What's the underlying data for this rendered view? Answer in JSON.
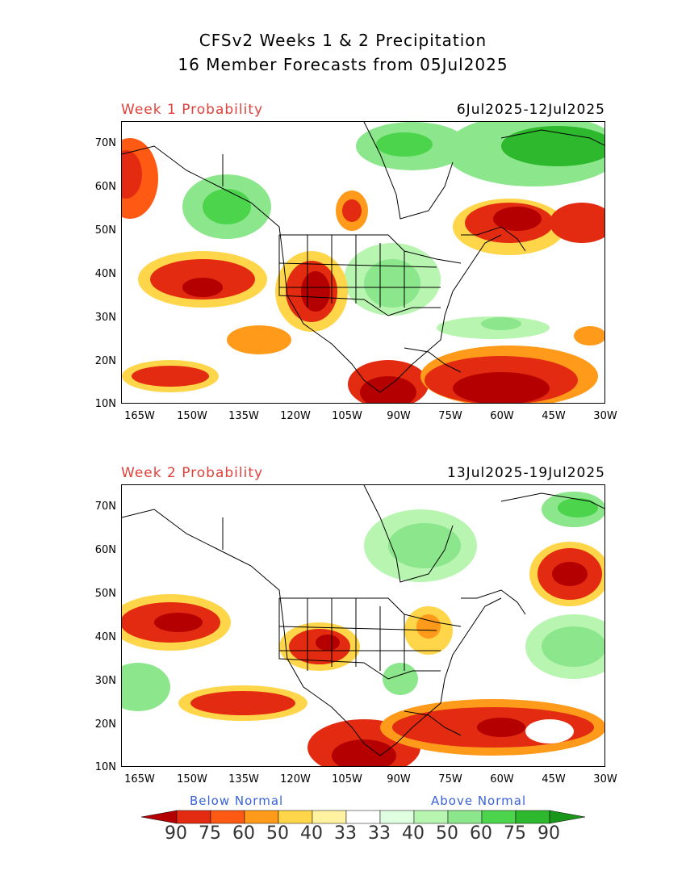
{
  "header": {
    "title_line1": "CFSv2 Weeks 1 & 2 Precipitation",
    "title_line2": "16 Member Forecasts from 05Jul2025"
  },
  "panels": [
    {
      "label": "Week 1 Probability",
      "dates": "6Jul2025-12Jul2025"
    },
    {
      "label": "Week 2 Probability",
      "dates": "13Jul2025-19Jul2025"
    }
  ],
  "axes": {
    "lat_labels": [
      "70N",
      "60N",
      "50N",
      "40N",
      "30N",
      "20N",
      "10N"
    ],
    "lon_labels": [
      "165W",
      "150W",
      "135W",
      "120W",
      "105W",
      "90W",
      "75W",
      "60W",
      "45W",
      "30W"
    ]
  },
  "legend": {
    "below_label": "Below Normal",
    "above_label": "Above Normal",
    "values": [
      "90",
      "75",
      "60",
      "50",
      "40",
      "33",
      "33",
      "40",
      "50",
      "60",
      "75",
      "90"
    ],
    "colors": [
      "#b40000",
      "#e22b10",
      "#ff5a14",
      "#ff9a1a",
      "#ffd54a",
      "#fff2a0",
      "#ffffff",
      "#e0ffe0",
      "#b8f5b0",
      "#8ce68c",
      "#4dd44d",
      "#2db82d",
      "#1a961a"
    ]
  }
}
